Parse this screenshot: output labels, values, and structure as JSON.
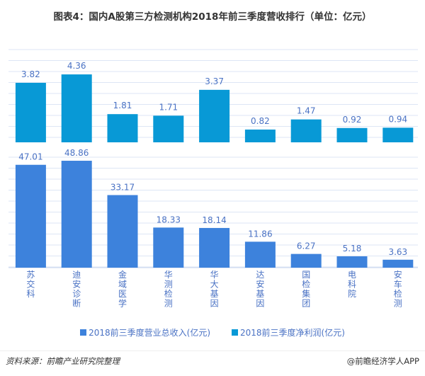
{
  "title": "图表4：国内A股第三方检测机构2018年前三季度营收排行（单位：亿元）",
  "colors": {
    "revenue": "#3d82dc",
    "profit": "#0899d6",
    "label": "#4a72c4",
    "grid": "#dde6f5"
  },
  "chart_data": [
    {
      "type": "bar",
      "title": "2018前三季度净利润(亿元)",
      "categories": [
        "苏交科",
        "迪安诊断",
        "金域医学",
        "华测检测",
        "华大基因",
        "达安基因",
        "国检集团",
        "电科院",
        "安车检测"
      ],
      "series": [
        {
          "name": "2018前三季度净利润(亿元)",
          "values": [
            3.82,
            4.36,
            1.81,
            1.71,
            3.37,
            0.82,
            1.47,
            0.92,
            0.94
          ]
        }
      ],
      "ylim": [
        0,
        5
      ],
      "grid": true
    },
    {
      "type": "bar",
      "title": "2018前三季度营业总收入(亿元)",
      "categories": [
        "苏交科",
        "迪安诊断",
        "金域医学",
        "华测检测",
        "华大基因",
        "达安基因",
        "国检集团",
        "电科院",
        "安车检测"
      ],
      "series": [
        {
          "name": "2018前三季度营业总收入(亿元)",
          "values": [
            47.01,
            48.86,
            33.17,
            18.33,
            18.14,
            11.86,
            6.27,
            5.18,
            3.63
          ]
        }
      ],
      "ylim": [
        0,
        50
      ],
      "grid": true
    }
  ],
  "categories_vertical": [
    "苏交科",
    "迪安诊断",
    "金域医学",
    "华测检测",
    "华大基因",
    "达安基因",
    "国检集团",
    "电科院",
    "安车检测"
  ],
  "legend": {
    "revenue": "2018前三季度营业总收入(亿元)",
    "profit": "2018前三季度净利润(亿元)"
  },
  "footer": {
    "source": "资料来源：前瞻产业研究院整理",
    "credit": "@前瞻经济学人APP"
  }
}
